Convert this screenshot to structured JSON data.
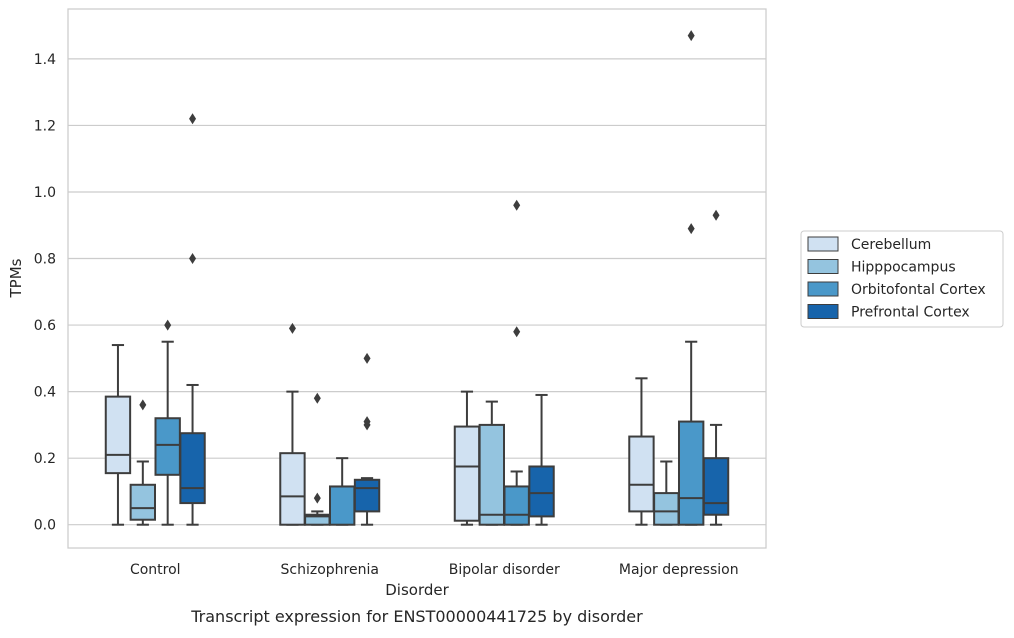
{
  "caption": "Transcript expression for ENST00000441725 by disorder",
  "chart_data": {
    "type": "box",
    "xlabel": "Disorder",
    "ylabel": "TPMs",
    "categories": [
      "Control",
      "Schizophrenia",
      "Bipolar disorder",
      "Major depression"
    ],
    "yticks": [
      "0.0",
      "0.2",
      "0.4",
      "0.6",
      "0.8",
      "1.0",
      "1.2",
      "1.4"
    ],
    "ylim": [
      -0.07,
      1.55
    ],
    "grid": "horizontal",
    "legend_position": "right",
    "series": [
      {
        "name": "Cerebellum",
        "color": "#d0e1f2",
        "boxes": [
          {
            "whisker_low": 0.0,
            "q1": 0.155,
            "median": 0.21,
            "q3": 0.385,
            "whisker_high": 0.54,
            "outliers": []
          },
          {
            "whisker_low": 0.0,
            "q1": 0.0,
            "median": 0.085,
            "q3": 0.215,
            "whisker_high": 0.4,
            "outliers": [
              0.59
            ]
          },
          {
            "whisker_low": 0.0,
            "q1": 0.012,
            "median": 0.175,
            "q3": 0.295,
            "whisker_high": 0.4,
            "outliers": []
          },
          {
            "whisker_low": 0.0,
            "q1": 0.04,
            "median": 0.12,
            "q3": 0.265,
            "whisker_high": 0.44,
            "outliers": []
          }
        ]
      },
      {
        "name": "Hipppocampus",
        "color": "#94c4df",
        "boxes": [
          {
            "whisker_low": 0.0,
            "q1": 0.015,
            "median": 0.05,
            "q3": 0.12,
            "whisker_high": 0.19,
            "outliers": [
              0.36
            ]
          },
          {
            "whisker_low": 0.0,
            "q1": 0.0,
            "median": 0.025,
            "q3": 0.03,
            "whisker_high": 0.04,
            "outliers": [
              0.08,
              0.38
            ]
          },
          {
            "whisker_low": 0.0,
            "q1": 0.0,
            "median": 0.03,
            "q3": 0.3,
            "whisker_high": 0.37,
            "outliers": []
          },
          {
            "whisker_low": 0.0,
            "q1": 0.0,
            "median": 0.04,
            "q3": 0.095,
            "whisker_high": 0.19,
            "outliers": []
          }
        ]
      },
      {
        "name": "Orbitofontal Cortex",
        "color": "#4a98c9",
        "boxes": [
          {
            "whisker_low": 0.0,
            "q1": 0.15,
            "median": 0.24,
            "q3": 0.32,
            "whisker_high": 0.55,
            "outliers": [
              0.6
            ]
          },
          {
            "whisker_low": 0.0,
            "q1": 0.0,
            "median": 0.115,
            "q3": 0.115,
            "whisker_high": 0.2,
            "outliers": []
          },
          {
            "whisker_low": 0.0,
            "q1": 0.0,
            "median": 0.03,
            "q3": 0.115,
            "whisker_high": 0.16,
            "outliers": [
              0.58,
              0.96
            ]
          },
          {
            "whisker_low": 0.0,
            "q1": 0.0,
            "median": 0.08,
            "q3": 0.31,
            "whisker_high": 0.55,
            "outliers": [
              0.89,
              1.47
            ]
          }
        ]
      },
      {
        "name": "Prefrontal Cortex",
        "color": "#1764ab",
        "boxes": [
          {
            "whisker_low": 0.0,
            "q1": 0.065,
            "median": 0.11,
            "q3": 0.275,
            "whisker_high": 0.42,
            "outliers": [
              0.8,
              1.22
            ]
          },
          {
            "whisker_low": 0.0,
            "q1": 0.04,
            "median": 0.11,
            "q3": 0.135,
            "whisker_high": 0.14,
            "outliers": [
              0.3,
              0.31,
              0.5
            ]
          },
          {
            "whisker_low": 0.0,
            "q1": 0.025,
            "median": 0.095,
            "q3": 0.175,
            "whisker_high": 0.39,
            "outliers": []
          },
          {
            "whisker_low": 0.0,
            "q1": 0.03,
            "median": 0.065,
            "q3": 0.2,
            "whisker_high": 0.3,
            "outliers": [
              0.93
            ]
          }
        ]
      }
    ]
  }
}
